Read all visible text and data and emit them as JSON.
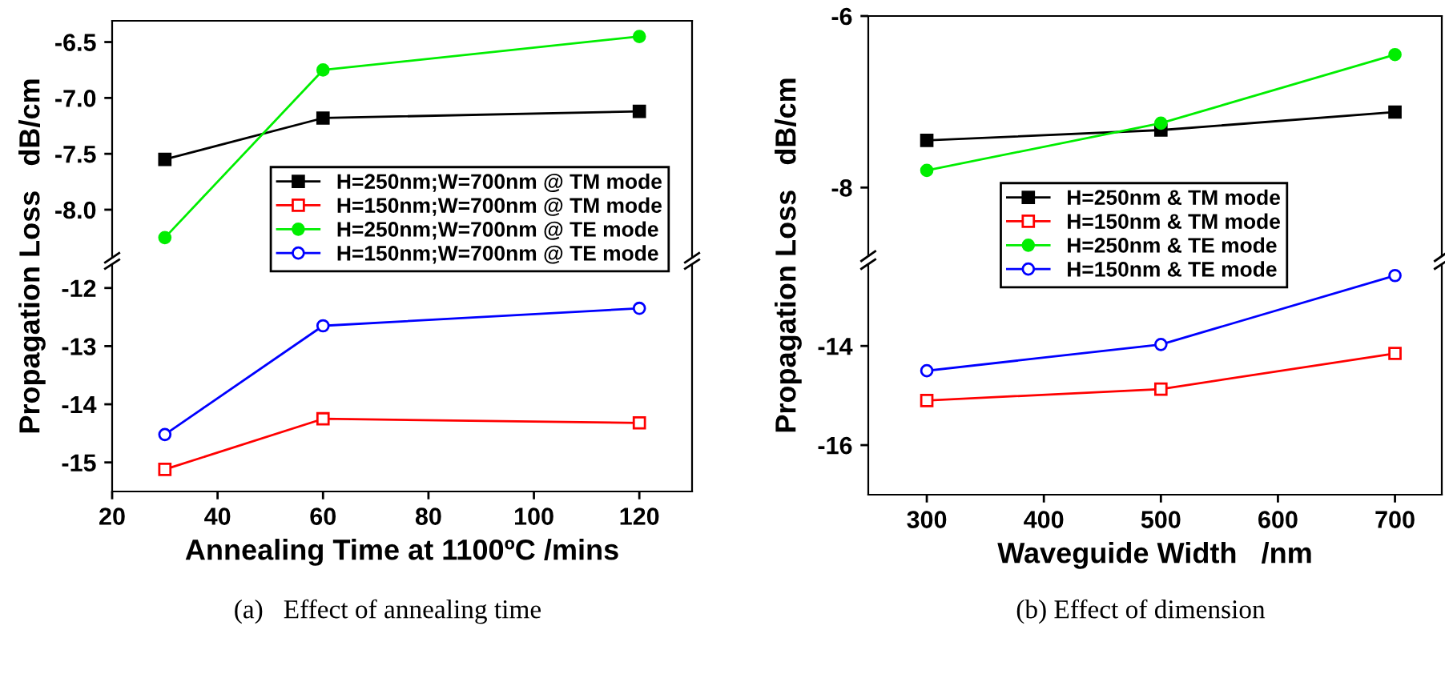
{
  "chart_data": [
    {
      "type": "line",
      "ylabel": "Propagation Loss   dB/cm",
      "x": [
        30,
        60,
        120
      ],
      "xlim": [
        20,
        130
      ],
      "xticks": [
        20,
        40,
        60,
        80,
        100,
        120
      ],
      "ylim": [
        -8.43,
        -6.31
      ],
      "yticks": [
        -6.5,
        {
          "value": -7,
          "label": "-7.0"
        },
        -7.5,
        {
          "value": -8,
          "label": "-8.0"
        }
      ],
      "tick_labels": "y",
      "legend": "right",
      "grid": false,
      "series": [
        {
          "name": "H=250nm;W=700nm @ TM mode",
          "color": "#000000",
          "marker": "square",
          "values": [
            -7.55,
            -7.18,
            -7.12
          ]
        },
        {
          "name": "H=250nm;W=700nm @ TE mode",
          "color": "#00ee00",
          "marker": "circle",
          "values": [
            -8.25,
            -6.75,
            -6.45
          ]
        }
      ]
    },
    {
      "type": "line",
      "xlabel": "Annealing Time at 1100ºC /mins",
      "annotations": [
        "(a)   Effect of annealing time"
      ],
      "x": [
        30,
        60,
        120
      ],
      "xlim": [
        20,
        130
      ],
      "xticks": [
        20,
        40,
        60,
        80,
        100,
        120
      ],
      "ylim": [
        -15.5,
        -11.59
      ],
      "yticks": [
        -12,
        -13,
        -14,
        -15
      ],
      "legend": "top right",
      "grid": false,
      "series": [
        {
          "name": "H=150nm;W=700nm @ TM mode",
          "color": "#ff0000",
          "marker": "square",
          "values": [
            -15.12,
            -14.25,
            -14.32
          ]
        },
        {
          "name": "H=150nm;W=700nm @ TE mode",
          "color": "#0000ff",
          "marker": "circle",
          "values": [
            -14.52,
            -12.65,
            -12.35
          ]
        }
      ]
    },
    {
      "type": "line",
      "ylabel": "Propagation Loss   dB/cm",
      "x": [
        300,
        500,
        700
      ],
      "xlim": [
        250,
        740
      ],
      "xticks": [
        300,
        400,
        500,
        600,
        700
      ],
      "ylim": [
        -8.8,
        -6
      ],
      "yticks": [
        -6,
        -8
      ],
      "tick_labels": "y",
      "legend": "bottom right",
      "grid": false,
      "series": [
        {
          "name": "H=250nm & TM mode",
          "color": "#000000",
          "marker": "square",
          "values": [
            -7.45,
            -7.33,
            -7.12
          ]
        },
        {
          "name": "H=250nm & TE mode",
          "color": "#00ee00",
          "marker": "circle",
          "values": [
            -7.8,
            -7.25,
            -6.45
          ]
        }
      ]
    },
    {
      "type": "line",
      "xlabel": "Waveguide Width   /nm",
      "annotations": [
        "(b) Effect of dimension"
      ],
      "x": [
        300,
        500,
        700
      ],
      "xlim": [
        250,
        740
      ],
      "xticks": [
        300,
        400,
        500,
        600,
        700
      ],
      "ylim": [
        -17,
        -12.35
      ],
      "yticks": [
        -14,
        -16
      ],
      "legend": "top right",
      "grid": false,
      "series": [
        {
          "name": "H=150nm & TM mode",
          "color": "#ff0000",
          "marker": "square",
          "values": [
            -15.1,
            -14.87,
            -14.15
          ]
        },
        {
          "name": "H=150nm & TE mode",
          "color": "#0000ff",
          "marker": "circle",
          "values": [
            -14.5,
            -13.97,
            -12.58
          ]
        }
      ]
    }
  ]
}
